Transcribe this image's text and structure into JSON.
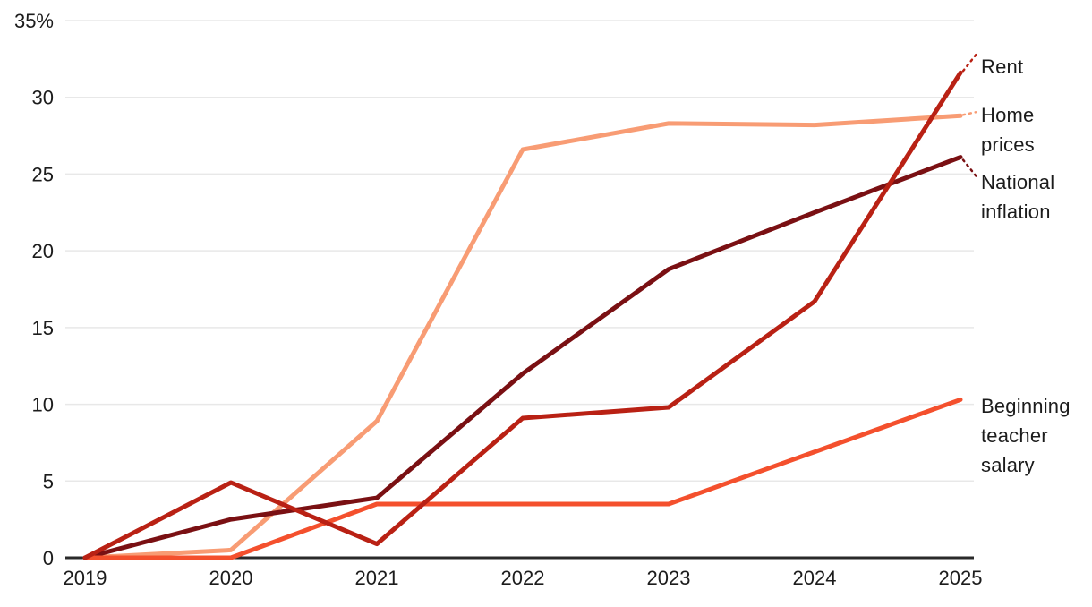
{
  "chart_data": {
    "type": "line",
    "title": "",
    "xlabel": "",
    "ylabel": "",
    "x": [
      "2019",
      "2020",
      "2021",
      "2022",
      "2023",
      "2024",
      "2025"
    ],
    "ylim": [
      0,
      35
    ],
    "yticks": [
      "0",
      "5",
      "10",
      "15",
      "20",
      "25",
      "30",
      "35%"
    ],
    "grid": "horizontal",
    "legend_position": "direct-line-labels-right",
    "series": [
      {
        "name": "Home prices",
        "label_lines": [
          "Home",
          "prices"
        ],
        "color": "#f89c74",
        "values": [
          0,
          0.5,
          8.9,
          26.6,
          28.3,
          28.2,
          28.8
        ]
      },
      {
        "name": "National inflation",
        "label_lines": [
          "National",
          "inflation"
        ],
        "color": "#7a1013",
        "values": [
          0,
          2.5,
          3.9,
          12.0,
          18.8,
          22.5,
          26.1
        ]
      },
      {
        "name": "Beginning teacher salary",
        "label_lines": [
          "Beginning",
          "teacher",
          "salary"
        ],
        "color": "#f4502d",
        "values": [
          0,
          0,
          3.5,
          3.5,
          3.5,
          6.9,
          10.3
        ]
      },
      {
        "name": "Rent",
        "label_lines": [
          "Rent"
        ],
        "color": "#b92114",
        "values": [
          0,
          4.9,
          0.9,
          9.1,
          9.8,
          16.7,
          31.6
        ]
      }
    ],
    "colors": {
      "grid": "#e8e8e8",
      "axis": "#2a2a2a",
      "text": "#1c1c1c"
    }
  }
}
